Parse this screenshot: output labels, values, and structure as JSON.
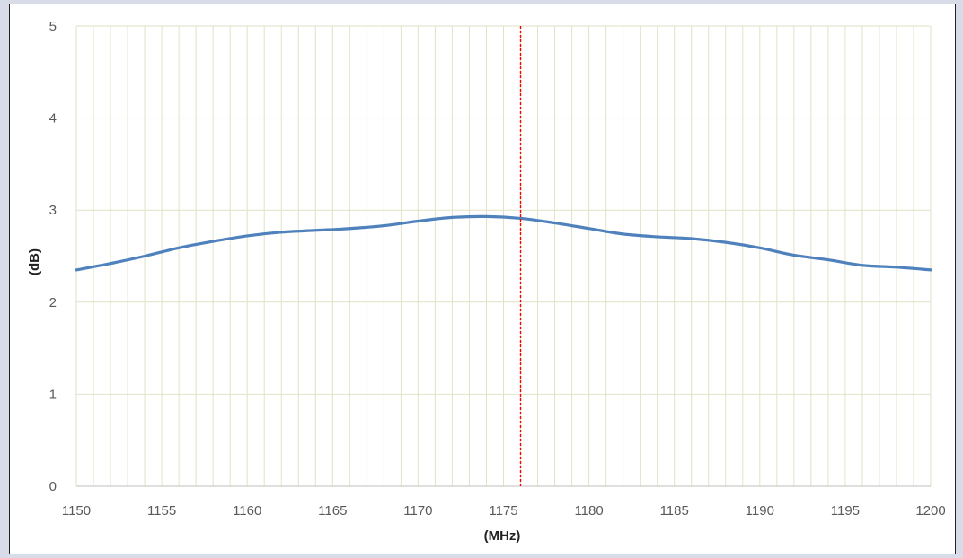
{
  "chart_data": {
    "type": "line",
    "title": "",
    "xlabel": "(MHz)",
    "ylabel": "(dB)",
    "xlim": [
      1150,
      1200
    ],
    "ylim": [
      0,
      5
    ],
    "x_ticks": [
      1150,
      1155,
      1160,
      1165,
      1170,
      1175,
      1180,
      1185,
      1190,
      1195,
      1200
    ],
    "y_ticks": [
      0,
      1,
      2,
      3,
      4,
      5
    ],
    "x_minor_step": 1,
    "grid": true,
    "colors": {
      "line": "#4f81bd",
      "marker_line": "#ff0000",
      "grid": "#e1e2c6",
      "tick_text": "#595959"
    },
    "marker": {
      "x": 1176,
      "style": "dashed"
    },
    "series": [
      {
        "x": [
          1150,
          1152,
          1154,
          1156,
          1158,
          1160,
          1162,
          1164,
          1166,
          1168,
          1170,
          1172,
          1174,
          1176,
          1178,
          1180,
          1182,
          1184,
          1186,
          1188,
          1190,
          1192,
          1194,
          1196,
          1198,
          1200
        ],
        "values": [
          2.35,
          2.42,
          2.5,
          2.59,
          2.66,
          2.72,
          2.76,
          2.78,
          2.8,
          2.83,
          2.88,
          2.92,
          2.93,
          2.91,
          2.86,
          2.8,
          2.74,
          2.71,
          2.69,
          2.65,
          2.59,
          2.51,
          2.46,
          2.4,
          2.38,
          2.35
        ]
      }
    ]
  }
}
